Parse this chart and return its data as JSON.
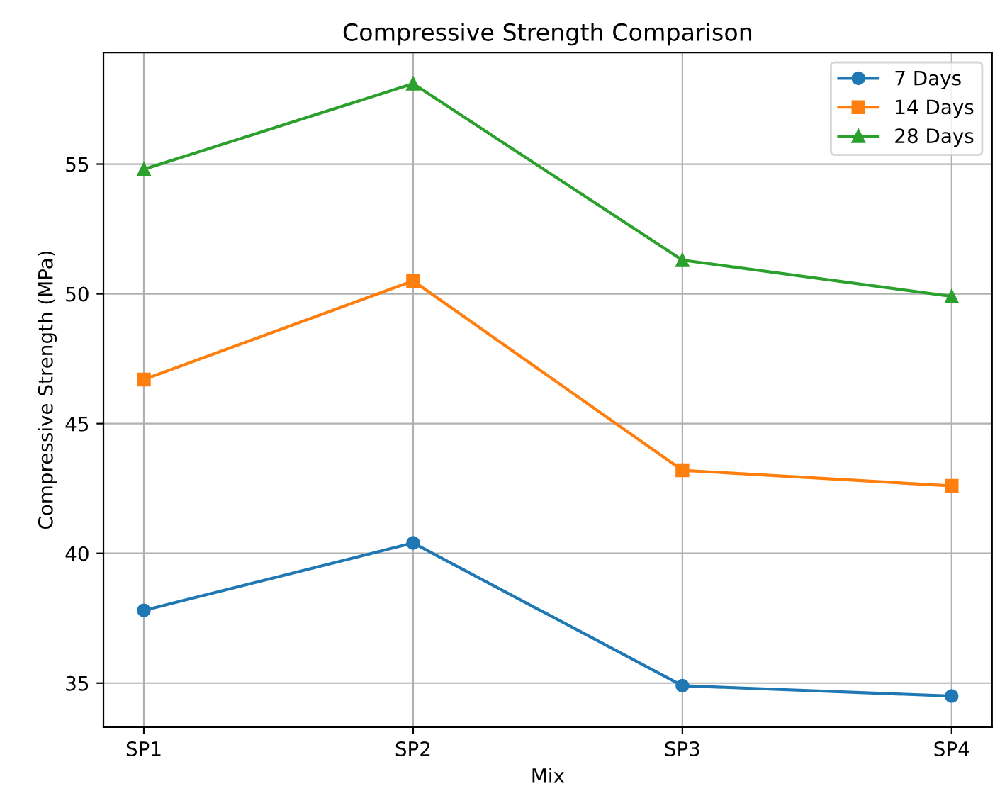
{
  "chart_data": {
    "type": "line",
    "title": "Compressive Strength Comparison",
    "xlabel": "Mix",
    "ylabel": "Compressive Strength (MPa)",
    "categories": [
      "SP1",
      "SP2",
      "SP3",
      "SP4"
    ],
    "series": [
      {
        "name": "7 Days",
        "color": "#1f77b4",
        "marker": "circle",
        "values": [
          37.8,
          40.4,
          34.9,
          34.5
        ]
      },
      {
        "name": "14 Days",
        "color": "#ff7f0e",
        "marker": "square",
        "values": [
          46.7,
          50.5,
          43.2,
          42.6
        ]
      },
      {
        "name": "28 Days",
        "color": "#2ca02c",
        "marker": "triangle",
        "values": [
          54.8,
          58.1,
          51.3,
          49.9
        ]
      }
    ],
    "ylim": [
      33.3,
      59.3
    ],
    "yticks": [
      35,
      40,
      45,
      50,
      55
    ],
    "grid": true,
    "legend": "top right",
    "line_style": "solid"
  }
}
